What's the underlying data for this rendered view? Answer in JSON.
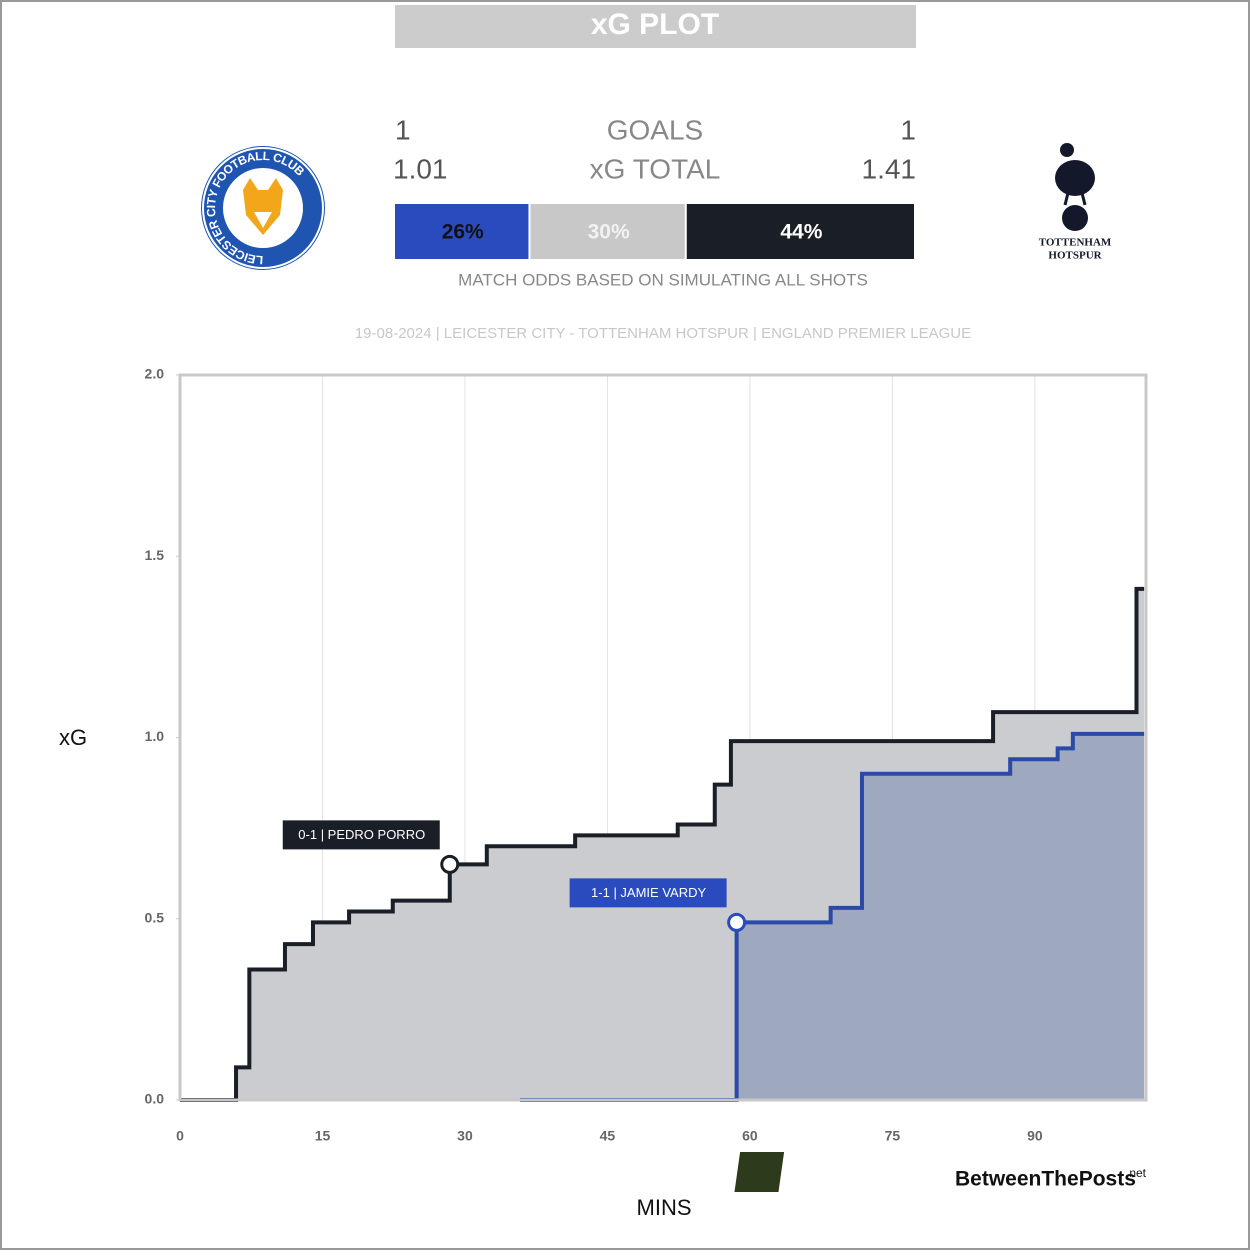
{
  "header": {
    "title": "xG PLOT",
    "goals_label": "GOALS",
    "home_goals": 1,
    "away_goals": 1,
    "xg_label": "xG TOTAL",
    "home_xg": "1.01",
    "away_xg": "1.41",
    "odds": {
      "values": [
        26,
        30,
        44
      ],
      "value_labels": [
        "26%",
        "30%",
        "44%"
      ],
      "colors": [
        "#2a4bbd",
        "#c8c8c8",
        "#1a1e26"
      ],
      "text_colors": [
        "#111111",
        "#f2f2f2",
        "#ffffff"
      ]
    },
    "odds_note": "MATCH ODDS BASED ON SIMULATING ALL SHOTS",
    "match": "19-08-2024 | LEICESTER CITY - TOTTENHAM HOTSPUR | ENGLAND PREMIER LEAGUE",
    "home_crest": "LEICESTER CITY FOOTBALL CLUB",
    "away_crest": [
      "TOTTENHAM",
      "HOTSPUR"
    ],
    "brand_mark": "BTP",
    "brand": "BetweenThePosts",
    "brand_suffix": ".net"
  },
  "chart_data": {
    "type": "step",
    "x_label": "MINS",
    "y_label": "xG",
    "xlim": [
      0,
      101.7
    ],
    "ylim": [
      0,
      2
    ],
    "xticks": [
      0,
      15,
      30,
      45,
      60,
      75,
      90
    ],
    "yticks": [
      {
        "value": 0,
        "label": "0.0"
      },
      0.5,
      {
        "value": 1,
        "label": "1.0"
      },
      1.5,
      {
        "value": 2,
        "label": "2.0"
      }
    ],
    "grid": true,
    "series": [
      {
        "name": "Tottenham Hotspur",
        "color": "#1a1e26",
        "fill": "#c8c9cd",
        "x": [
          0,
          5.9,
          7.3,
          11.05,
          14,
          17.8,
          22.4,
          28.4,
          32.3,
          41.6,
          52.4,
          56.3,
          58,
          85.6,
          100.7,
          101.5
        ],
        "values": [
          0,
          0.09,
          0.36,
          0.43,
          0.49,
          0.52,
          0.55,
          0.65,
          0.7,
          0.73,
          0.76,
          0.87,
          0.99,
          1.07,
          1.41,
          1.41
        ]
      },
      {
        "name": "Leicester City",
        "color": "#2b4aa8",
        "fill": "#9ba6bf",
        "x": [
          35.8,
          58.6,
          68.5,
          71.8,
          87.4,
          92.4,
          94,
          101.5
        ],
        "values": [
          0,
          0.49,
          0.53,
          0.9,
          0.94,
          0.97,
          1.01,
          1.01
        ]
      }
    ],
    "annotations": [
      {
        "text": "0-1 | PEDRO PORRO",
        "x": 28.4,
        "y": 0.65,
        "color": "#1a1e26"
      },
      {
        "text": "1-1 | JAMIE VARDY",
        "x": 58.6,
        "y": 0.49,
        "color": "#2a4bbd"
      }
    ]
  }
}
